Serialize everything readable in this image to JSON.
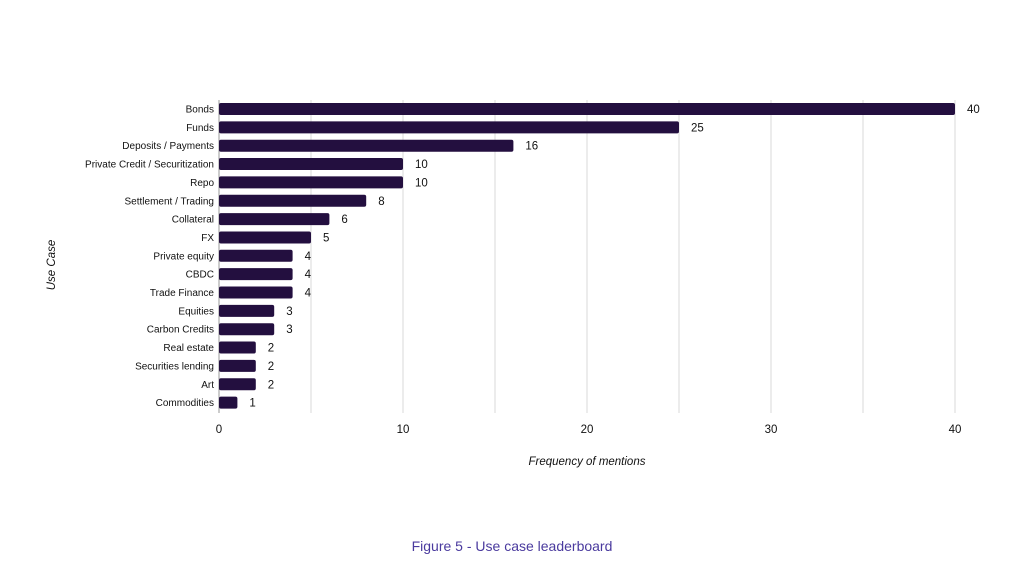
{
  "chart_data": {
    "type": "bar",
    "orientation": "horizontal",
    "categories": [
      "Bonds",
      "Funds",
      "Deposits / Payments",
      "Private Credit / Securitization",
      "Repo",
      "Settlement / Trading",
      "Collateral",
      "FX",
      "Private equity",
      "CBDC",
      "Trade Finance",
      "Equities",
      "Carbon Credits",
      "Real estate",
      "Securities lending",
      "Art",
      "Commodities"
    ],
    "values": [
      40,
      25,
      16,
      10,
      10,
      8,
      6,
      5,
      4,
      4,
      4,
      3,
      3,
      2,
      2,
      2,
      1
    ],
    "data_labels": [
      "40",
      "25",
      "16",
      "10",
      "10",
      "8",
      "6",
      "5",
      "4",
      "4",
      "4",
      "3",
      "3",
      "2",
      "2",
      "2",
      "1"
    ],
    "xlabel": "Frequency of mentions",
    "ylabel": "Use Case",
    "xlim": [
      0,
      40
    ],
    "x_ticks": [
      "0",
      "10",
      "20",
      "30",
      "40"
    ],
    "grid": true,
    "legend": "none",
    "bar_color": "#230f3f",
    "grid_color": "#d9d9d9"
  },
  "caption": "Figure 5 - Use case leaderboard",
  "caption_color": "#4a3a9e"
}
